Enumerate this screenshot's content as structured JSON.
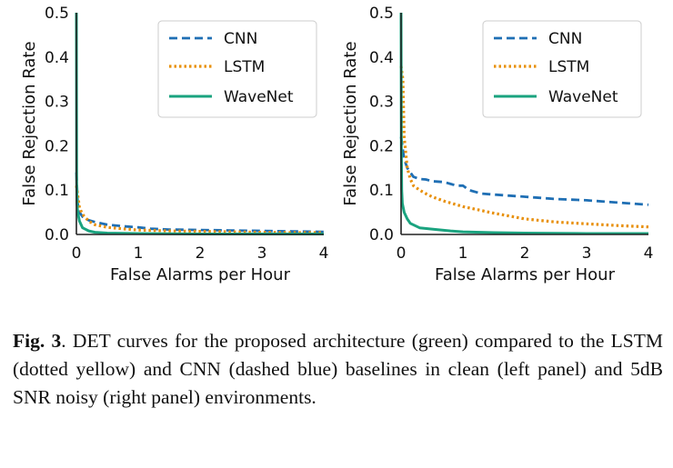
{
  "chart_data": [
    {
      "type": "line",
      "panel": "left",
      "xlabel": "False Alarms per Hour",
      "ylabel": "False Rejection Rate",
      "xlim": [
        0,
        4
      ],
      "ylim": [
        0,
        0.5
      ],
      "xticks": [
        "0",
        "1",
        "2",
        "3",
        "4"
      ],
      "yticks": [
        "0.0",
        "0.1",
        "0.2",
        "0.3",
        "0.4",
        "0.5"
      ],
      "grid": false,
      "legend_position": "top-right",
      "series": [
        {
          "name": "CNN",
          "color": "#1f6fb4",
          "style": "dashed",
          "x": [
            0.0,
            0.02,
            0.05,
            0.1,
            0.2,
            0.3,
            0.5,
            0.8,
            1.0,
            1.2,
            1.5,
            2.0,
            2.5,
            3.0,
            3.5,
            4.0
          ],
          "y": [
            0.14,
            0.07,
            0.05,
            0.04,
            0.032,
            0.028,
            0.022,
            0.018,
            0.016,
            0.013,
            0.011,
            0.01,
            0.009,
            0.008,
            0.007,
            0.006
          ]
        },
        {
          "name": "LSTM",
          "color": "#e8900a",
          "style": "dotted",
          "x": [
            0.0,
            0.02,
            0.05,
            0.1,
            0.2,
            0.3,
            0.5,
            0.8,
            1.0,
            1.5,
            2.0,
            2.5,
            3.0,
            3.5,
            4.0
          ],
          "y": [
            0.11,
            0.09,
            0.06,
            0.045,
            0.03,
            0.022,
            0.016,
            0.012,
            0.01,
            0.008,
            0.007,
            0.006,
            0.005,
            0.004,
            0.004
          ]
        },
        {
          "name": "WaveNet",
          "color": "#1aa37f",
          "style": "solid",
          "x": [
            0.0,
            0.005,
            0.01,
            0.02,
            0.05,
            0.1,
            0.2,
            0.3,
            0.5,
            1.0,
            2.0,
            3.0,
            4.0
          ],
          "y": [
            0.5,
            0.12,
            0.07,
            0.05,
            0.03,
            0.015,
            0.008,
            0.005,
            0.003,
            0.002,
            0.001,
            0.001,
            0.001
          ]
        }
      ]
    },
    {
      "type": "line",
      "panel": "right",
      "xlabel": "False Alarms per Hour",
      "ylabel": "False Rejection Rate",
      "xlim": [
        0,
        4
      ],
      "ylim": [
        0,
        0.5
      ],
      "xticks": [
        "0",
        "1",
        "2",
        "3",
        "4"
      ],
      "yticks": [
        "0.0",
        "0.1",
        "0.2",
        "0.3",
        "0.4",
        "0.5"
      ],
      "grid": false,
      "legend_position": "top-right",
      "series": [
        {
          "name": "CNN",
          "color": "#1f6fb4",
          "style": "dashed",
          "x": [
            0.0,
            0.05,
            0.1,
            0.15,
            0.2,
            0.3,
            0.4,
            0.5,
            0.7,
            0.8,
            0.9,
            1.0,
            1.1,
            1.3,
            1.5,
            2.0,
            2.5,
            3.0,
            3.5,
            4.0
          ],
          "y": [
            0.22,
            0.17,
            0.15,
            0.14,
            0.13,
            0.125,
            0.124,
            0.12,
            0.118,
            0.114,
            0.11,
            0.11,
            0.1,
            0.092,
            0.09,
            0.085,
            0.08,
            0.077,
            0.072,
            0.067
          ]
        },
        {
          "name": "LSTM",
          "color": "#e8900a",
          "style": "dotted",
          "x": [
            0.0,
            0.03,
            0.05,
            0.1,
            0.15,
            0.2,
            0.3,
            0.4,
            0.5,
            0.7,
            1.0,
            1.5,
            2.0,
            2.5,
            3.0,
            3.5,
            4.0
          ],
          "y": [
            0.38,
            0.35,
            0.22,
            0.15,
            0.125,
            0.11,
            0.1,
            0.092,
            0.085,
            0.075,
            0.063,
            0.048,
            0.035,
            0.028,
            0.024,
            0.02,
            0.017
          ]
        },
        {
          "name": "WaveNet",
          "color": "#1aa37f",
          "style": "solid",
          "x": [
            0.0,
            0.005,
            0.01,
            0.02,
            0.05,
            0.1,
            0.15,
            0.3,
            0.5,
            0.8,
            1.0,
            1.5,
            2.0,
            3.0,
            4.0
          ],
          "y": [
            0.5,
            0.2,
            0.1,
            0.07,
            0.05,
            0.035,
            0.025,
            0.015,
            0.012,
            0.008,
            0.006,
            0.004,
            0.003,
            0.002,
            0.002
          ]
        }
      ]
    }
  ],
  "caption": {
    "label": "Fig. 3",
    "text": ".  DET curves for the proposed architecture (green) compared to the LSTM (dotted yellow) and CNN (dashed blue) baselines in clean (left panel) and 5dB SNR noisy (right panel) environments."
  }
}
